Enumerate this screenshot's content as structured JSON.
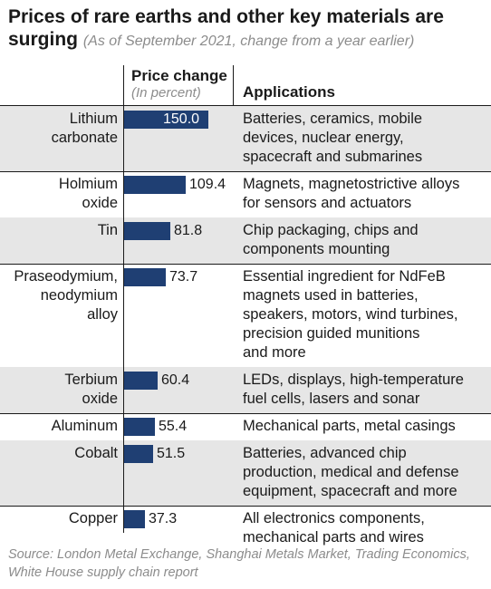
{
  "title": "Prices of rare earths and other key materials are surging",
  "subtitle": "(As of September 2021, change from a year earlier)",
  "header": {
    "price_change": "Price change",
    "price_change_unit": "(In percent)",
    "applications": "Applications"
  },
  "source": "Source: London Metal Exchange, Shanghai Metals Market, Trading Economics, White House supply chain report",
  "colors": {
    "bar": "#1f3f73",
    "shade": "#e6e6e6",
    "muted_text": "#8c8c8c"
  },
  "chart_data": {
    "type": "bar",
    "orientation": "horizontal",
    "title": "Prices of rare earths and other key materials are surging",
    "subtitle": "(As of September 2021, change from a year earlier)",
    "xlabel": "Price change",
    "unit": "(In percent)",
    "xlim": [
      0,
      150
    ],
    "categories": [
      "Lithium\ncarbonate",
      "Holmium\noxide",
      "Tin",
      "Praseodymium,\nneodymium\nalloy",
      "Terbium\noxide",
      "Aluminum",
      "Cobalt",
      "Copper"
    ],
    "values": [
      150.0,
      109.4,
      81.8,
      73.7,
      60.4,
      55.4,
      51.5,
      37.3
    ],
    "value_labels": [
      "150.0",
      "109.4",
      "81.8",
      "73.7",
      "60.4",
      "55.4",
      "51.5",
      "37.3"
    ],
    "applications": [
      "Batteries, ceramics, mobile\ndevices, nuclear energy,\nspacecraft and submarines",
      "Magnets, magnetostrictive alloys\nfor sensors and actuators",
      "Chip packaging, chips and\ncomponents mounting",
      "Essential ingredient for NdFeB\nmagnets used in batteries,\nspeakers, motors, wind turbines,\nprecision guided munitions\nand more",
      "LEDs, displays, high-temperature\nfuel cells, lasers and sonar",
      "Mechanical parts, metal casings",
      "Batteries, advanced chip\nproduction, medical and defense\nequipment, spacecraft and more",
      "All electronics components,\nmechanical parts and wires"
    ]
  }
}
